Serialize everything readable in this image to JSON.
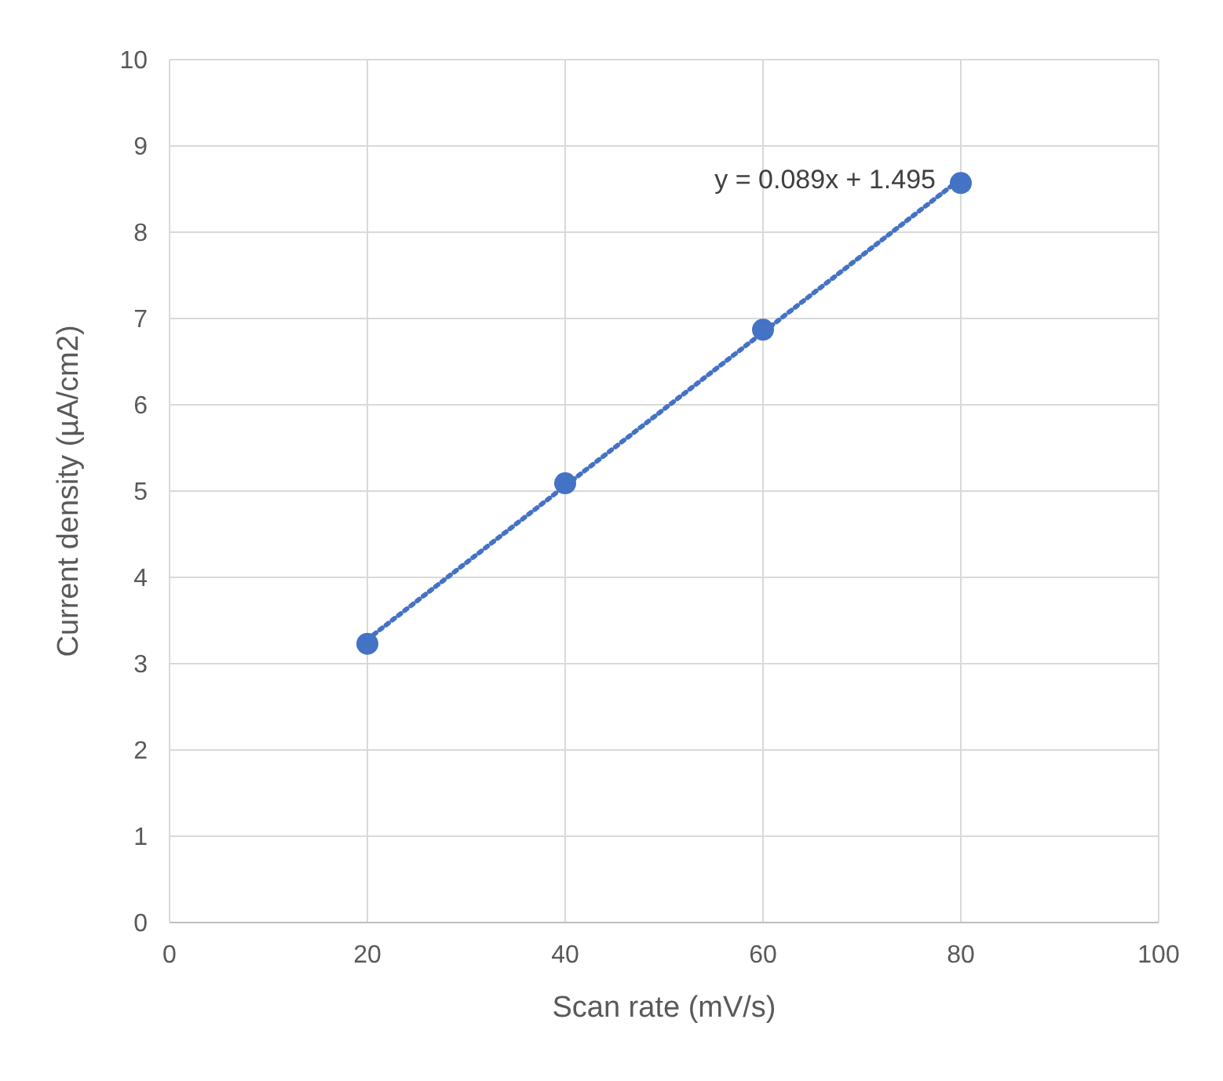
{
  "chart_data": {
    "type": "scatter",
    "xlabel": "Scan rate (mV/s)",
    "ylabel": "Current density (µA/cm2)",
    "xlim": [
      0,
      100
    ],
    "xticks": [
      0,
      20,
      40,
      60,
      80,
      100
    ],
    "ylim": [
      0,
      10
    ],
    "yticks": [
      0,
      1,
      2,
      3,
      4,
      5,
      6,
      7,
      8,
      9,
      10
    ],
    "grid": true,
    "series": [
      {
        "color": "#4472c4",
        "marker": "circle",
        "x": [
          20,
          40,
          60,
          80
        ],
        "values": [
          3.23,
          5.09,
          6.87,
          8.57
        ]
      },
      {
        "type": "line",
        "color": "#4472c4",
        "line_style": "dotted",
        "marker": "none",
        "x": [
          20,
          80
        ],
        "values": [
          3.28,
          8.62
        ]
      }
    ],
    "annotations": [
      {
        "text": "y = 0.089x + 1.495",
        "x": 80,
        "y": 8.615
      }
    ]
  }
}
